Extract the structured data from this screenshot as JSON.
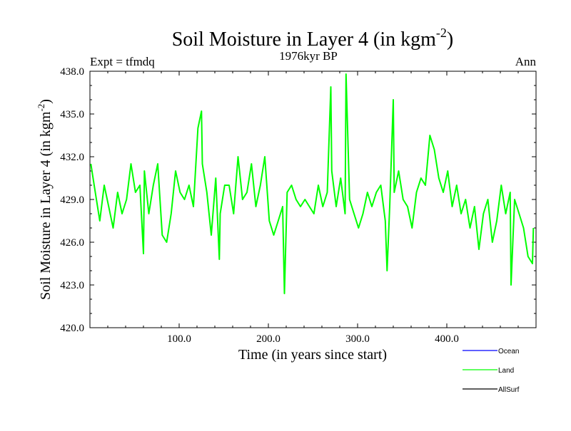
{
  "chart_data": {
    "type": "line",
    "title": "Soil Moisture in Layer 4 (in kgm",
    "title_superscript": "-2",
    "title_suffix": ")",
    "subtitle": "1976kyr BP",
    "left_label": "Expt = tfmdq",
    "right_label": "Ann",
    "xlabel": "Time (in years since start)",
    "ylabel": "Soil Moisture in Layer 4 (in kgm",
    "ylabel_superscript": "-2",
    "ylabel_suffix": ")",
    "xlim": [
      0,
      500
    ],
    "ylim": [
      420.0,
      438.0
    ],
    "xticks": [
      100,
      200,
      300,
      400
    ],
    "xtick_labels": [
      "100.0",
      "200.0",
      "300.0",
      "400.0"
    ],
    "yticks": [
      420,
      423,
      426,
      429,
      432,
      435,
      438
    ],
    "ytick_labels": [
      "420.0",
      "423.0",
      "426.0",
      "429.0",
      "432.0",
      "435.0",
      "438.0"
    ],
    "series": [
      {
        "name": "Land",
        "color": "#00ff00",
        "x_start": 1,
        "x_step": 5,
        "values": [
          431.5,
          429.5,
          427.5,
          430.0,
          428.5,
          427.0,
          429.5,
          428.0,
          429.0,
          431.5,
          429.5,
          430.0,
          431.0,
          428.0,
          430.0,
          431.5,
          426.5,
          426.0,
          428.0,
          431.0,
          429.5,
          429.0,
          430.0,
          428.5,
          434.0,
          431.5,
          429.5,
          426.5,
          430.5,
          428.0,
          430.0,
          430.0,
          428.0,
          432.0,
          429.0,
          429.5,
          431.5,
          428.5,
          430.0,
          432.0,
          427.5,
          426.5,
          427.5,
          428.5,
          429.5,
          430.0,
          429.0,
          428.5,
          429.0,
          428.5,
          428.0,
          430.0,
          428.5,
          429.5,
          431.0,
          428.5,
          430.5,
          428.0,
          429.0,
          428.0,
          427.0,
          428.0,
          429.5,
          428.5,
          429.5,
          430.0,
          427.5,
          428.5,
          429.5,
          431.0,
          429.0,
          428.5,
          427.0,
          429.5,
          430.5,
          430.0,
          433.5,
          432.5,
          430.5,
          429.5,
          431.0,
          428.5,
          430.0,
          428.0,
          429.0,
          427.0,
          428.5,
          425.5,
          428.0,
          429.0,
          426.0,
          427.5,
          430.0,
          428.0,
          429.5,
          429.0,
          428.0,
          427.0,
          425.0,
          424.5
        ],
        "extra_points": [
          [
            60,
            425.2
          ],
          [
            125,
            435.2
          ],
          [
            145,
            424.8
          ],
          [
            218,
            422.4
          ],
          [
            270,
            436.9
          ],
          [
            287,
            437.8
          ],
          [
            333,
            424.0
          ],
          [
            340,
            436.0
          ],
          [
            472,
            423.0
          ],
          [
            497,
            427.0
          ]
        ]
      }
    ],
    "legend": [
      {
        "name": "Ocean",
        "color": "#0000ff"
      },
      {
        "name": "Land",
        "color": "#00ff00"
      },
      {
        "name": "AllSurf",
        "color": "#000000"
      }
    ]
  }
}
